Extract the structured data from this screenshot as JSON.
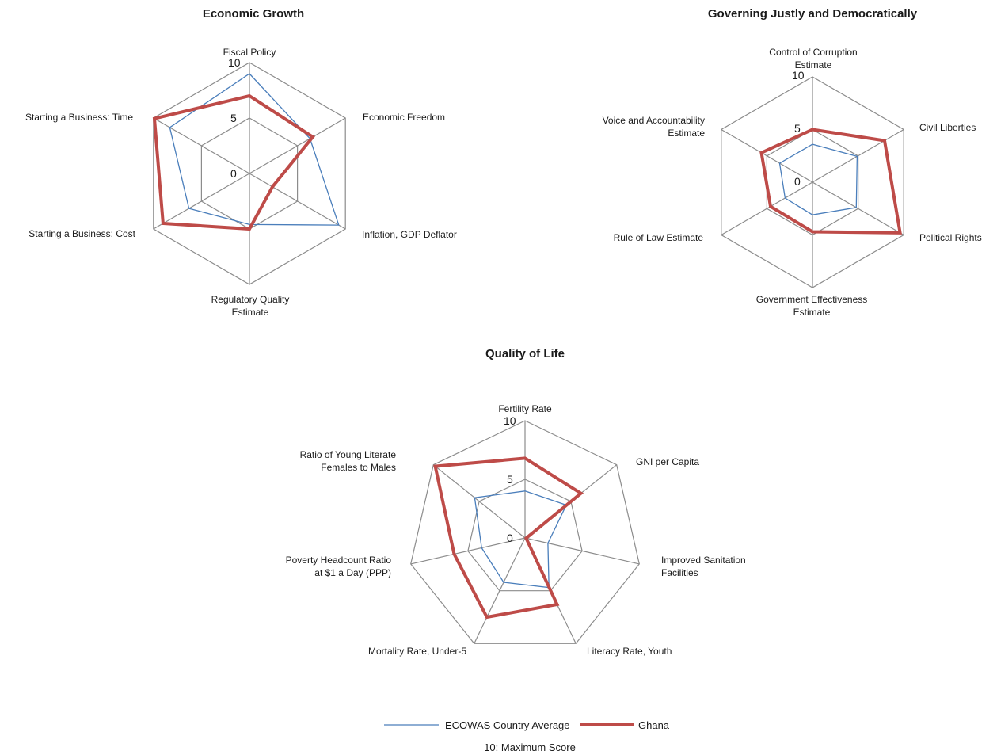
{
  "chart_data": [
    {
      "type": "radar",
      "title": "Economic Growth",
      "axes": [
        "Fiscal Policy",
        "Economic Freedom",
        "Inflation, GDP Deflator",
        "Regulatory Quality|Estimate",
        "Starting a Business: Cost",
        "Starting a Business: Time"
      ],
      "rlim": [
        0,
        10
      ],
      "ticks": [
        "0",
        "5",
        "10"
      ],
      "series": [
        {
          "name": "ECOWAS Country Average",
          "values": [
            9.0,
            6.3,
            9.3,
            4.6,
            6.3,
            8.3
          ]
        },
        {
          "name": "Ghana",
          "values": [
            7.0,
            6.6,
            2.4,
            5.0,
            9.0,
            9.9
          ]
        }
      ]
    },
    {
      "type": "radar",
      "title": "Governing Justly and Democratically",
      "axes": [
        "Control of Corruption|Estimate",
        "Civil Liberties",
        "Political Rights",
        "Government Effectiveness|Estimate",
        "Rule of Law Estimate",
        "Voice and Accountability|Estimate"
      ],
      "rlim": [
        0,
        10
      ],
      "ticks": [
        "0",
        "5",
        "10"
      ],
      "series": [
        {
          "name": "ECOWAS Country Average",
          "values": [
            3.6,
            4.9,
            4.8,
            3.1,
            3.0,
            3.6
          ]
        },
        {
          "name": "Ghana",
          "values": [
            5.0,
            7.9,
            9.6,
            4.7,
            4.6,
            5.6
          ]
        }
      ]
    },
    {
      "type": "radar",
      "title": "Quality of Life",
      "axes": [
        "Fertility Rate",
        "GNI per Capita",
        "Improved Sanitation|Facilities",
        "Literacy Rate, Youth",
        "Mortality Rate, Under-5",
        "Poverty Headcount Ratio|at $1 a Day (PPP)",
        "Ratio of Young Literate|Females to Males"
      ],
      "rlim": [
        0,
        10
      ],
      "ticks": [
        "0",
        "5",
        "10"
      ],
      "series": [
        {
          "name": "ECOWAS Country Average",
          "values": [
            4.0,
            4.5,
            2.0,
            4.7,
            4.2,
            3.8,
            5.5
          ]
        },
        {
          "name": "Ghana",
          "values": [
            6.8,
            6.1,
            0.1,
            6.3,
            7.5,
            6.2,
            9.8
          ]
        }
      ]
    }
  ],
  "legend": {
    "items": [
      {
        "label": "ECOWAS Country Average",
        "color": "#4a7ebb"
      },
      {
        "label": "Ghana",
        "color": "#be4b48"
      }
    ],
    "position": "bottom-center"
  },
  "footnote": "10: Maximum Score",
  "colors": {
    "grid": "#8c8c8c",
    "ecowas": "#4a7ebb",
    "ghana": "#be4b48"
  }
}
